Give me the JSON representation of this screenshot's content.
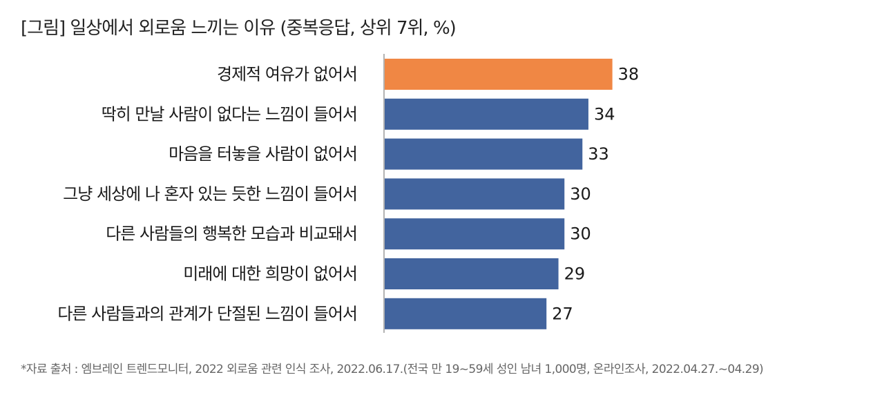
{
  "title": "[그림] 일상에서 외로움 느끼는 이유 (중복응답, 상위 7위, %)",
  "source": "*자료 출처 : 엠브레인 트렌드모니터, 2022 외로움 관련 인식 조사, 2022.06.17.(전국 만 19~59세 성인 남녀 1,000명, 온라인조사, 2022.04.27.~04.29)",
  "chart_data": {
    "type": "bar",
    "orientation": "horizontal",
    "categories": [
      "경제적 여유가 없어서",
      "딱히 만날 사람이 없다는 느낌이 들어서",
      "마음을 터놓을 사람이 없어서",
      "그냥 세상에 나 혼자 있는 듯한 느낌이 들어서",
      "다른 사람들의 행복한 모습과 비교돼서",
      "미래에 대한 희망이 없어서",
      "다른 사람들과의 관계가 단절된 느낌이 들어서"
    ],
    "values": [
      38,
      34,
      33,
      30,
      30,
      29,
      27
    ],
    "xlim": [
      0,
      40
    ],
    "grid": false,
    "colors": {
      "highlight": "#F08744",
      "default": "#42649E",
      "axis": "#999999"
    },
    "highlight_index": 0
  }
}
